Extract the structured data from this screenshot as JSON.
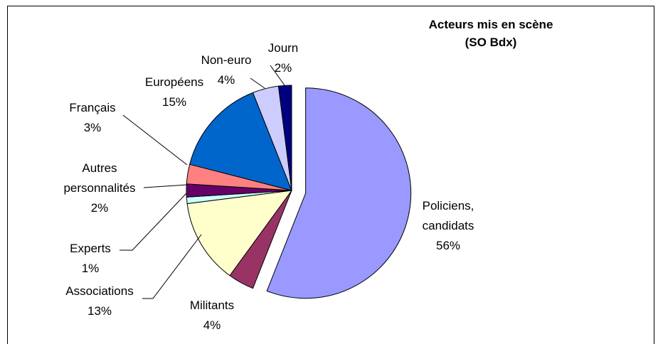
{
  "chart_data": {
    "type": "pie",
    "title": [
      "Acteurs mis en scène",
      "(SO Bdx)"
    ],
    "categories": [
      "Policiens, candidats",
      "Militants",
      "Associations",
      "Experts",
      "Autres personnalités",
      "Français",
      "Européens",
      "Non-euro",
      "Journ"
    ],
    "values": [
      56,
      4,
      13,
      1,
      2,
      3,
      15,
      4,
      2
    ],
    "value_labels": [
      "56%",
      "4%",
      "13%",
      "1%",
      "2%",
      "3%",
      "15%",
      "4%",
      "2%"
    ],
    "colors": [
      "#9999ff",
      "#993366",
      "#ffffcc",
      "#ccffff",
      "#660066",
      "#ff8080",
      "#0066cc",
      "#ccccff",
      "#000080"
    ]
  }
}
